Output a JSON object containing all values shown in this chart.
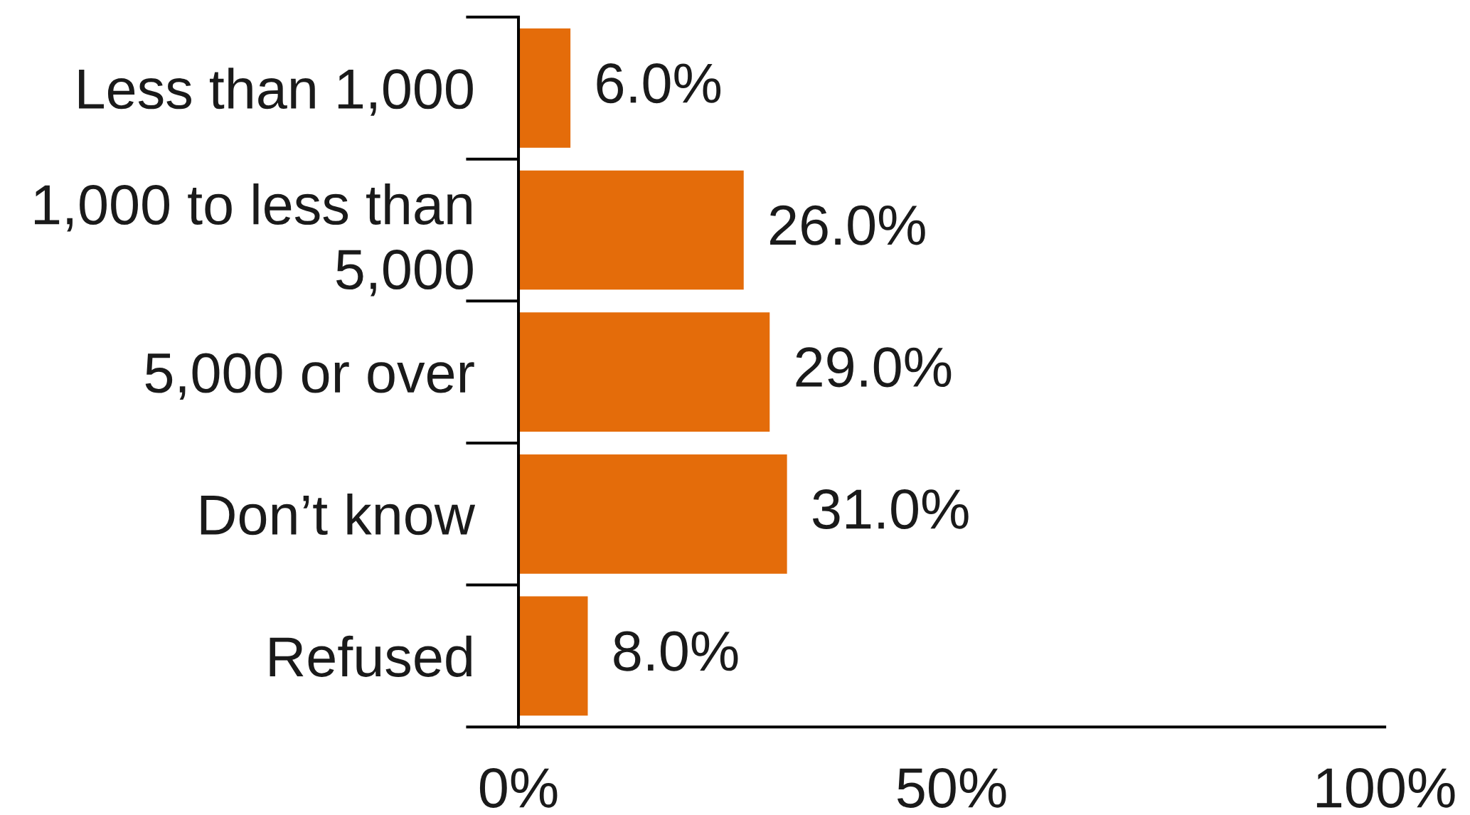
{
  "chart_data": {
    "type": "bar",
    "orientation": "horizontal",
    "categories": [
      "Less than 1,000",
      "1,000 to less than\n5,000",
      "5,000 or over",
      "Don’t know",
      "Refused"
    ],
    "values": [
      6.0,
      26.0,
      29.0,
      31.0,
      8.0
    ],
    "value_labels": [
      "6.0%",
      "26.0%",
      "29.0%",
      "31.0%",
      "8.0%"
    ],
    "color": "#e46c0a",
    "xlim": [
      0,
      100
    ],
    "xticks": [
      {
        "value": 0,
        "label": "0%"
      },
      {
        "value": 50,
        "label": "50%"
      },
      {
        "value": 100,
        "label": "100%"
      }
    ]
  }
}
